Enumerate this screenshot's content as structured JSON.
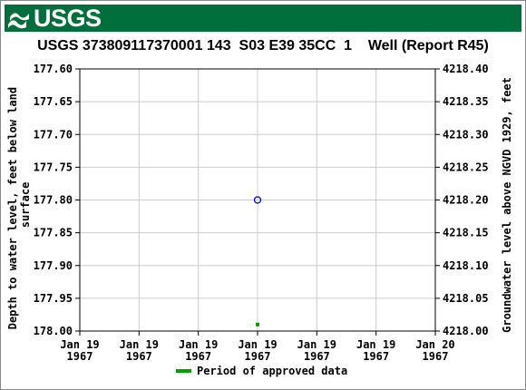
{
  "header": {
    "agency": "USGS"
  },
  "chart_data": {
    "type": "scatter",
    "title": "USGS 373809117370001 143  S03 E39 35CC  1    Well (Report R45)",
    "ylabel_left": "Depth to water level, feet below land surface",
    "ylabel_right": "Groundwater level above NGVD 1929, feet",
    "left_ticks": [
      "177.60",
      "177.65",
      "177.70",
      "177.75",
      "177.80",
      "177.85",
      "177.90",
      "177.95",
      "178.00"
    ],
    "right_ticks": [
      "4218.40",
      "4218.35",
      "4218.30",
      "4218.25",
      "4218.20",
      "4218.15",
      "4218.10",
      "4218.05",
      "4218.00"
    ],
    "x_ticks": [
      [
        "Jan 19",
        "1967"
      ],
      [
        "Jan 19",
        "1967"
      ],
      [
        "Jan 19",
        "1967"
      ],
      [
        "Jan 19",
        "1967"
      ],
      [
        "Jan 19",
        "1967"
      ],
      [
        "Jan 19",
        "1967"
      ],
      [
        "Jan 20",
        "1967"
      ]
    ],
    "ylim": [
      177.6,
      178.0
    ],
    "y_inverted": true,
    "grid": true,
    "points": [
      {
        "x_index": 3,
        "y": 177.8
      }
    ],
    "approved_marks": [
      {
        "x_index": 3,
        "y": 177.99
      }
    ],
    "legend": {
      "label": "Period of approved data",
      "placement": "bottom-center"
    },
    "colors": {
      "point": "#0000cc",
      "approved": "#00a000",
      "grid": "#cccccc",
      "banner": "#006f3c"
    }
  }
}
